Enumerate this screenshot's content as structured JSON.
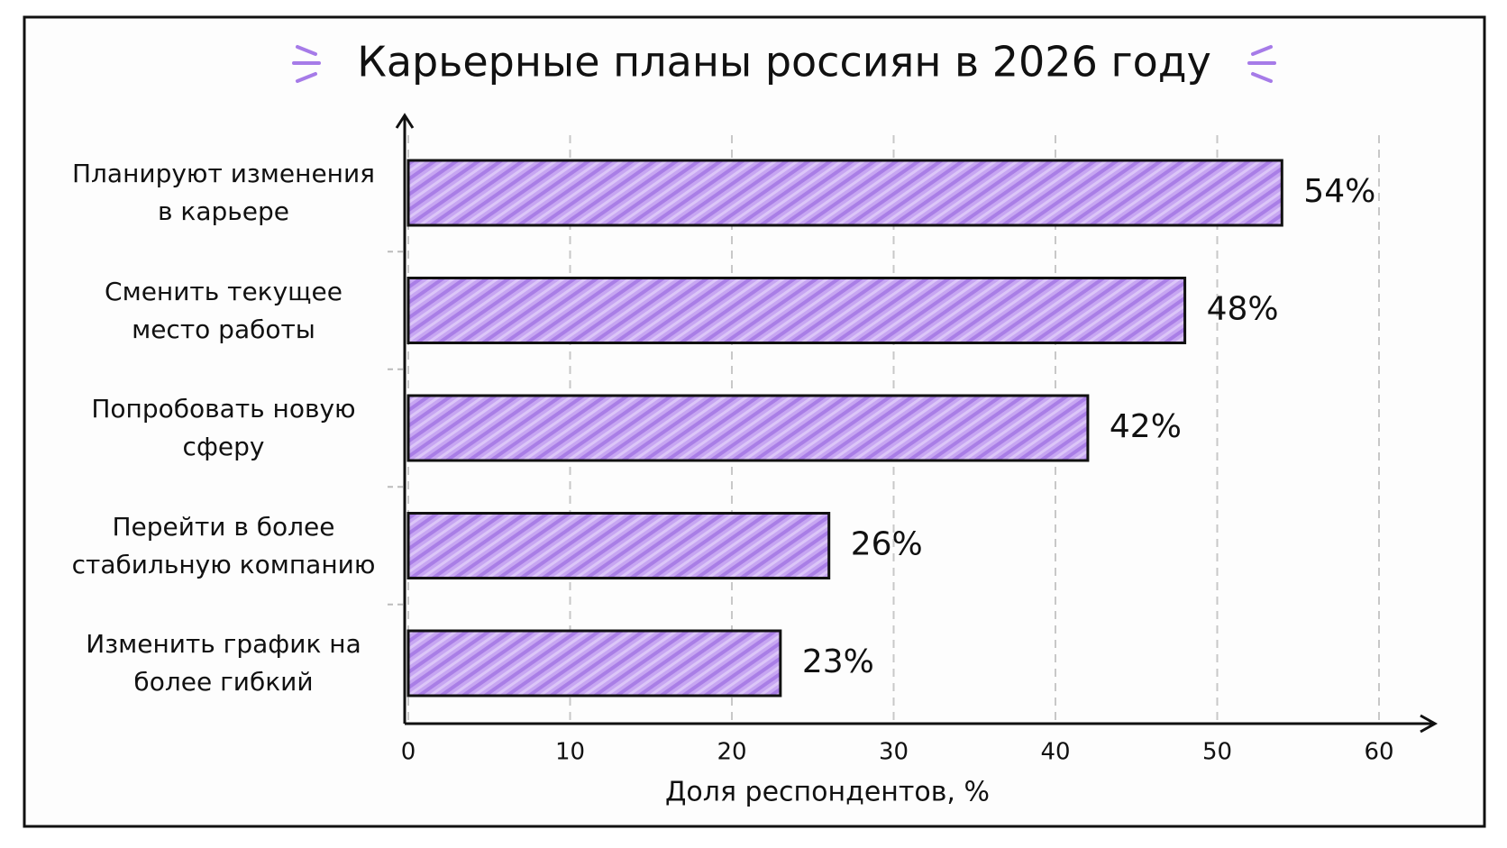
{
  "chart_data": {
    "type": "bar",
    "orientation": "horizontal",
    "title": "Карьерные планы россиян в 2026 году",
    "categories": [
      "Планируют изменения в карьере",
      "Сменить текущее место работы",
      "Попробовать новую сферу",
      "Перейти в более стабильную компанию",
      "Изменить график на более гибкий"
    ],
    "values": [
      54,
      48,
      42,
      26,
      23
    ],
    "value_labels": [
      "54%",
      "48%",
      "42%",
      "26%",
      "23%"
    ],
    "color": "#c7a6f2",
    "xlim": [
      0,
      60
    ],
    "xticks": [
      0,
      10,
      20,
      30,
      40,
      50,
      60
    ],
    "xlabel": "Доля респондентов, %",
    "grid": true
  }
}
